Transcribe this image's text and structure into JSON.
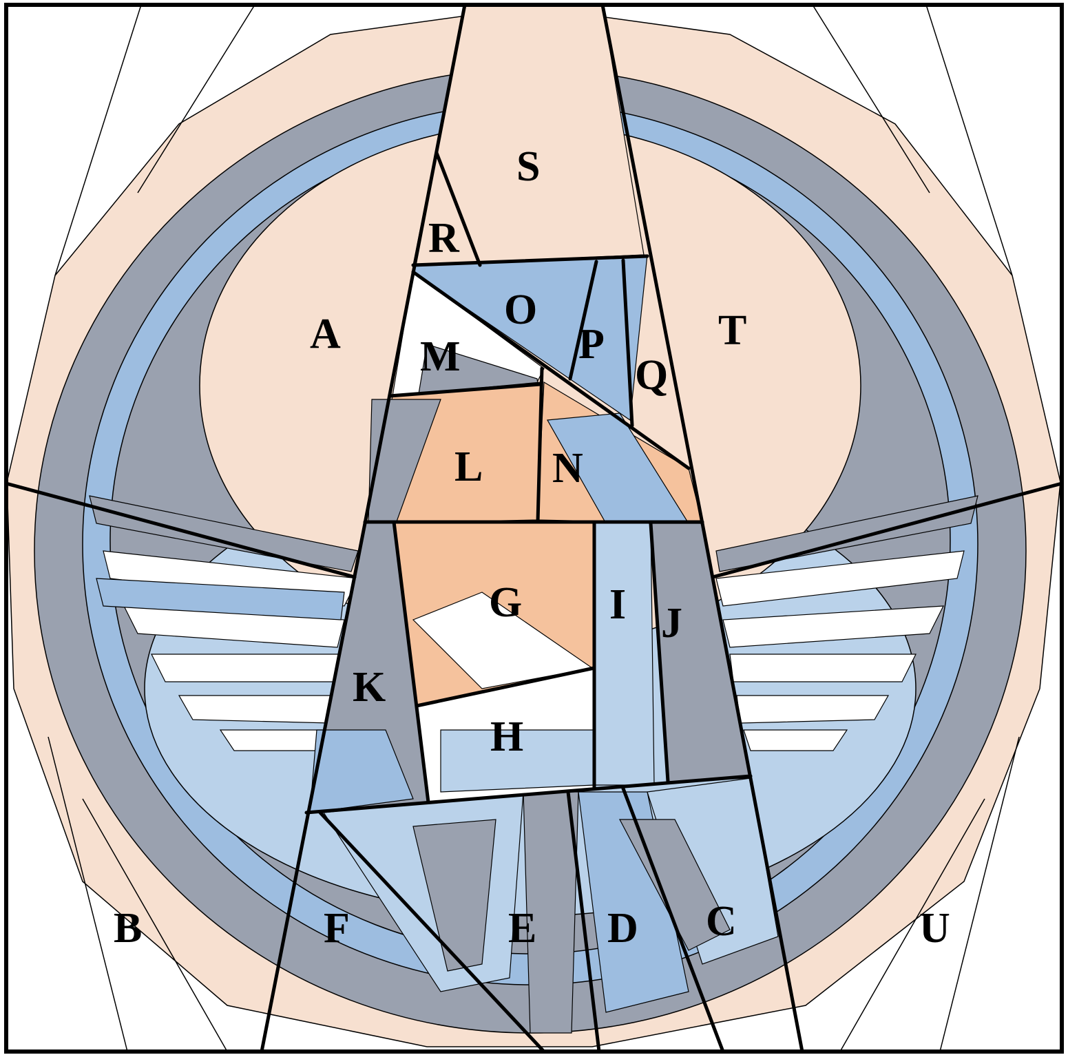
{
  "section_labels": {
    "a": "A",
    "b": "B",
    "c": "C",
    "d": "D",
    "e": "E",
    "f": "F",
    "g": "G",
    "h": "H",
    "i": "I",
    "j": "J",
    "k": "K",
    "l": "L",
    "m": "M",
    "n": "N",
    "o": "O",
    "p": "P",
    "q": "Q",
    "r": "R",
    "s": "S",
    "t": "T",
    "u": "U"
  },
  "colors": {
    "background": "#ffffff",
    "peach_light": "#f7e0d0",
    "peach": "#f5c29d",
    "slate": "#9aa1af",
    "blue": "#9dbde0",
    "blue_pale": "#bad2ea",
    "white": "#ffffff",
    "line": "#000000"
  }
}
